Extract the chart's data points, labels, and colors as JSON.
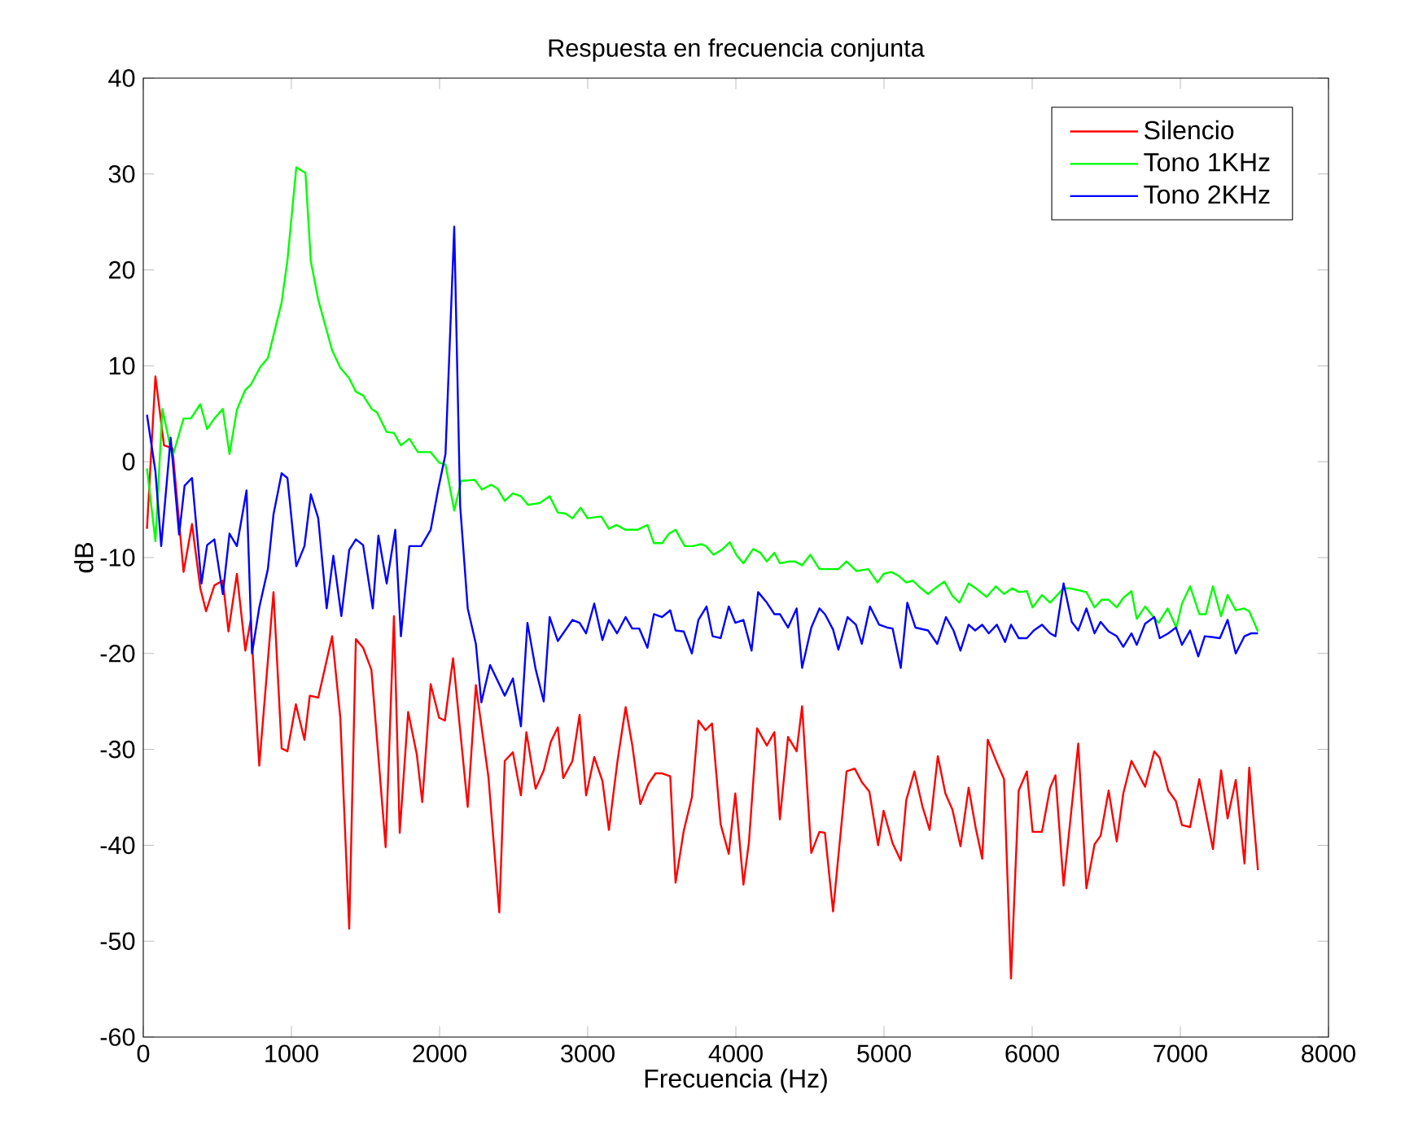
{
  "chart_data": {
    "type": "line",
    "title": "Respuesta en frecuencia conjunta",
    "xlabel": "Frecuencia (Hz)",
    "ylabel": "dB",
    "xlim": [
      0,
      8000
    ],
    "ylim": [
      -60,
      40
    ],
    "xticks": [
      0,
      1000,
      2000,
      3000,
      4000,
      5000,
      6000,
      7000,
      8000
    ],
    "yticks": [
      -60,
      -50,
      -40,
      -30,
      -20,
      -10,
      0,
      10,
      20,
      30,
      40
    ],
    "grid": false,
    "legend": "top right",
    "marker": "none",
    "line_style": "solid",
    "series": [
      {
        "name": "Silencio",
        "color": "#ff0000",
        "x": [
          25,
          82,
          140,
          197,
          272,
          329,
          385,
          424,
          480,
          537,
          575,
          632,
          689,
          725,
          783,
          879,
          934,
          973,
          1030,
          1088,
          1124,
          1181,
          1275,
          1330,
          1390,
          1435,
          1484,
          1540,
          1636,
          1692,
          1731,
          1788,
          1846,
          1883,
          1940,
          1997,
          2036,
          2091,
          2190,
          2245,
          2330,
          2403,
          2440,
          2495,
          2549,
          2586,
          2648,
          2703,
          2751,
          2798,
          2835,
          2897,
          2945,
          2989,
          3044,
          3099,
          3143,
          3201,
          3256,
          3300,
          3355,
          3410,
          3458,
          3502,
          3557,
          3593,
          3648,
          3703,
          3747,
          3795,
          3839,
          3897,
          3952,
          3996,
          4051,
          4088,
          4143,
          4209,
          4260,
          4297,
          4352,
          4410,
          4447,
          4509,
          4564,
          4601,
          4656,
          4747,
          4802,
          4850,
          4901,
          4960,
          4997,
          5058,
          5113,
          5150,
          5205,
          5260,
          5308,
          5363,
          5414,
          5462,
          5516,
          5571,
          5619,
          5663,
          5700,
          5762,
          5810,
          5857,
          5909,
          5964,
          6003,
          6066,
          6121,
          6157,
          6212,
          6311,
          6366,
          6421,
          6462,
          6516,
          6571,
          6615,
          6670,
          6762,
          6824,
          6861,
          6919,
          6970,
          7011,
          7066,
          7128,
          7220,
          7275,
          7319,
          7374,
          7433,
          7465,
          7524
        ],
        "values": [
          -7,
          8.9,
          1.7,
          1.4,
          -11.5,
          -6.5,
          -13.2,
          -15.6,
          -12.9,
          -12.4,
          -17.7,
          -11.7,
          -19.7,
          -16.5,
          -31.7,
          -13.6,
          -29.9,
          -30.2,
          -25.3,
          -29,
          -24.4,
          -24.6,
          -18.2,
          -26.7,
          -48.7,
          -18.5,
          -19.4,
          -21.7,
          -40.2,
          -16.1,
          -38.7,
          -26.1,
          -30.5,
          -35.5,
          -23.2,
          -26.7,
          -27,
          -20.5,
          -36,
          -23.3,
          -32.9,
          -47,
          -31.2,
          -30.3,
          -34.8,
          -28.2,
          -34.1,
          -32.2,
          -29.2,
          -27.7,
          -33,
          -31.2,
          -26.4,
          -34.8,
          -30.8,
          -33.3,
          -38.4,
          -31.2,
          -25.6,
          -29.5,
          -35.7,
          -33.6,
          -32.5,
          -32.5,
          -32.8,
          -43.9,
          -38.5,
          -35,
          -27,
          -28,
          -27.3,
          -37.8,
          -40.9,
          -34.6,
          -44.1,
          -39.7,
          -27.8,
          -29.6,
          -28.2,
          -37.3,
          -28.7,
          -30.2,
          -25.5,
          -40.8,
          -38.6,
          -38.7,
          -46.9,
          -32.3,
          -32,
          -33.4,
          -34.4,
          -40,
          -36.4,
          -39.8,
          -41.6,
          -35.3,
          -32.3,
          -36,
          -38.4,
          -30.7,
          -34.6,
          -36.3,
          -40.1,
          -34,
          -38.2,
          -41.4,
          -29,
          -31.4,
          -33.1,
          -53.9,
          -34.3,
          -32.3,
          -38.6,
          -38.6,
          -34,
          -32.7,
          -44.2,
          -29.4,
          -44.5,
          -39.9,
          -39,
          -34.3,
          -39.6,
          -34.6,
          -31.2,
          -33.9,
          -30.2,
          -30.9,
          -34.3,
          -35.4,
          -37.9,
          -38.1,
          -33.1,
          -40.4,
          -32.2,
          -37.2,
          -33.2,
          -41.9,
          -31.9,
          -42.6
        ]
      },
      {
        "name": "Tono 1KHz",
        "color": "#00ff00",
        "x": [
          25,
          82,
          129,
          197,
          272,
          321,
          385,
          431,
          480,
          537,
          582,
          632,
          689,
          725,
          791,
          841,
          934,
          973,
          1033,
          1095,
          1131,
          1181,
          1275,
          1330,
          1390,
          1435,
          1484,
          1542,
          1579,
          1643,
          1692,
          1739,
          1796,
          1853,
          1940,
          1997,
          2040,
          2099,
          2146,
          2238,
          2286,
          2348,
          2391,
          2440,
          2495,
          2549,
          2597,
          2678,
          2743,
          2798,
          2849,
          2897,
          2952,
          2999,
          3091,
          3143,
          3194,
          3256,
          3337,
          3403,
          3447,
          3502,
          3549,
          3593,
          3655,
          3710,
          3765,
          3798,
          3849,
          3904,
          3959,
          4007,
          4051,
          4117,
          4165,
          4209,
          4260,
          4297,
          4363,
          4396,
          4447,
          4502,
          4564,
          4630,
          4692,
          4747,
          4813,
          4894,
          4956,
          4997,
          5048,
          5099,
          5150,
          5194,
          5242,
          5297,
          5344,
          5407,
          5462,
          5509,
          5571,
          5619,
          5692,
          5755,
          5810,
          5864,
          5912,
          5964,
          6003,
          6066,
          6121,
          6212,
          6249,
          6311,
          6366,
          6421,
          6469,
          6516,
          6571,
          6615,
          6670,
          6706,
          6762,
          6798,
          6853,
          6915,
          6973,
          7011,
          7066,
          7128,
          7172,
          7220,
          7275,
          7319,
          7374,
          7429,
          7465,
          7524
        ],
        "values": [
          -0.7,
          -8.3,
          5.5,
          0.5,
          4.5,
          4.5,
          6,
          3.4,
          4.5,
          5.5,
          0.8,
          5.4,
          7.5,
          8,
          9.9,
          10.8,
          16.6,
          21,
          30.7,
          30.1,
          20.9,
          16.9,
          11.6,
          9.8,
          8.7,
          7.3,
          6.9,
          5.5,
          5.1,
          3.1,
          3,
          1.7,
          2.4,
          1,
          1,
          -0.1,
          -0.3,
          -5.1,
          -2,
          -1.9,
          -2.9,
          -2.4,
          -2.8,
          -4.1,
          -3.3,
          -3.6,
          -4.5,
          -4.3,
          -3.6,
          -5.3,
          -5.4,
          -5.9,
          -4.8,
          -5.9,
          -5.7,
          -7,
          -6.6,
          -7.1,
          -7.1,
          -6.6,
          -8.5,
          -8.5,
          -7.5,
          -7.1,
          -8.8,
          -8.8,
          -8.6,
          -8.8,
          -9.7,
          -9.2,
          -8.4,
          -9.8,
          -10.6,
          -9.1,
          -9.5,
          -10.4,
          -9.5,
          -10.6,
          -10.4,
          -10.4,
          -10.8,
          -9.7,
          -11.2,
          -11.2,
          -11.2,
          -10.4,
          -11.4,
          -11.2,
          -12.6,
          -11.7,
          -11.5,
          -11.9,
          -12.6,
          -12.4,
          -13.1,
          -13.8,
          -13.2,
          -12.5,
          -14,
          -14.7,
          -12.7,
          -13.2,
          -14.1,
          -13,
          -13.8,
          -13.2,
          -13.6,
          -13.5,
          -15.2,
          -13.9,
          -14.7,
          -13.2,
          -13.2,
          -13.4,
          -13.6,
          -15.2,
          -14.4,
          -14.4,
          -15.2,
          -14.2,
          -13.5,
          -16.4,
          -15.1,
          -15.8,
          -16.8,
          -15.3,
          -17.3,
          -14.8,
          -13,
          -15.9,
          -15.9,
          -13,
          -16.1,
          -13.9,
          -15.5,
          -15.3,
          -15.6,
          -17.7
        ]
      },
      {
        "name": "Tono 2KHz",
        "color": "#0000ff",
        "x": [
          25,
          82,
          121,
          185,
          242,
          279,
          329,
          393,
          431,
          480,
          537,
          582,
          632,
          697,
          734,
          783,
          841,
          879,
          934,
          973,
          1033,
          1088,
          1131,
          1181,
          1238,
          1283,
          1337,
          1390,
          1435,
          1484,
          1549,
          1587,
          1643,
          1701,
          1739,
          1796,
          1876,
          1940,
          1989,
          2040,
          2099,
          2139,
          2190,
          2245,
          2282,
          2341,
          2440,
          2495,
          2549,
          2593,
          2648,
          2703,
          2743,
          2798,
          2897,
          2945,
          2989,
          3044,
          3099,
          3143,
          3198,
          3256,
          3300,
          3348,
          3403,
          3447,
          3502,
          3557,
          3593,
          3648,
          3703,
          3747,
          3802,
          3843,
          3897,
          3952,
          3996,
          4051,
          4106,
          4150,
          4209,
          4260,
          4297,
          4352,
          4410,
          4447,
          4509,
          4564,
          4601,
          4656,
          4692,
          4754,
          4810,
          4850,
          4905,
          4967,
          5022,
          5058,
          5113,
          5157,
          5212,
          5297,
          5359,
          5418,
          5469,
          5516,
          5571,
          5615,
          5663,
          5707,
          5762,
          5817,
          5857,
          5909,
          5964,
          6011,
          6066,
          6121,
          6157,
          6212,
          6267,
          6311,
          6366,
          6421,
          6462,
          6516,
          6571,
          6615,
          6670,
          6706,
          6762,
          6824,
          6861,
          6919,
          6970,
          7011,
          7066,
          7121,
          7165,
          7220,
          7267,
          7319,
          7374,
          7433,
          7476,
          7524
        ],
        "values": [
          4.9,
          -1,
          -8.8,
          2.5,
          -7.6,
          -2.5,
          -1.7,
          -12.7,
          -8.7,
          -8.1,
          -13.8,
          -7.5,
          -8.8,
          -3,
          -20,
          -15.2,
          -11.2,
          -5.5,
          -1.2,
          -1.7,
          -10.9,
          -8.8,
          -3.4,
          -5.9,
          -15.3,
          -9.8,
          -16.1,
          -9.2,
          -8.1,
          -8.7,
          -15.3,
          -7.7,
          -12.7,
          -7.1,
          -18.2,
          -8.8,
          -8.8,
          -7.1,
          -3,
          0.8,
          24.5,
          -4.6,
          -15.3,
          -19,
          -25.1,
          -21.2,
          -24.4,
          -22.6,
          -27.6,
          -16.8,
          -21.6,
          -25,
          -16.2,
          -18.7,
          -16.5,
          -16.8,
          -17.9,
          -14.8,
          -18.6,
          -16.5,
          -17.9,
          -16.2,
          -17.4,
          -17.4,
          -19.4,
          -15.9,
          -16.2,
          -15.5,
          -17.6,
          -17.7,
          -20,
          -16.5,
          -15.1,
          -18.2,
          -18.4,
          -15.1,
          -16.8,
          -16.5,
          -19.7,
          -13.6,
          -14.7,
          -15.9,
          -15.9,
          -17.3,
          -15.3,
          -21.5,
          -17.3,
          -15.3,
          -15.9,
          -17.5,
          -19.6,
          -16.2,
          -17,
          -19,
          -15.1,
          -17,
          -17.3,
          -17.4,
          -21.5,
          -14.7,
          -17.3,
          -17.6,
          -19,
          -16.2,
          -17.6,
          -19.7,
          -17,
          -17.6,
          -17,
          -17.9,
          -17,
          -18.8,
          -17,
          -18.4,
          -18.4,
          -17.6,
          -17,
          -17.9,
          -18.2,
          -12.7,
          -16.7,
          -17.6,
          -15.3,
          -17.9,
          -16.7,
          -17.7,
          -18.2,
          -19.3,
          -17.9,
          -19.1,
          -16.9,
          -16.2,
          -18.4,
          -17.9,
          -17.3,
          -19.1,
          -17.6,
          -20.3,
          -18.2,
          -18.3,
          -18.4,
          -16.5,
          -20,
          -18.2,
          -17.9,
          -17.9
        ]
      }
    ]
  }
}
